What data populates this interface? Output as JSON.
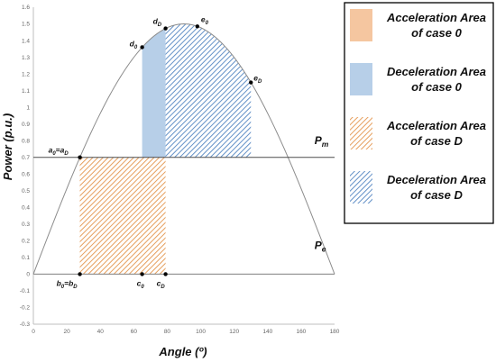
{
  "chart_data": {
    "type": "line",
    "title": "",
    "xlabel": "Angle (º)",
    "ylabel": "Power (p.u.)",
    "xlim": [
      0,
      180
    ],
    "ylim": [
      -0.3,
      1.6
    ],
    "xticks": [
      "0",
      "20",
      "40",
      "60",
      "80",
      "100",
      "120",
      "140",
      "160",
      "180"
    ],
    "yticks": [
      "-0.3",
      "-0.2",
      "-0.1",
      "0",
      "0.1",
      "0.2",
      "0.3",
      "0.4",
      "0.5",
      "0.6",
      "0.7",
      "0.8",
      "0.9",
      "1",
      "1.1",
      "1.2",
      "1.3",
      "1.4",
      "1.5",
      "1.6"
    ],
    "grid": false,
    "series": [
      {
        "name": "Pe",
        "curve": "sine",
        "amplitude": 1.5,
        "x_range": [
          0,
          180
        ]
      },
      {
        "name": "Pm",
        "constant": 0.7,
        "x_range": [
          0,
          180
        ]
      }
    ],
    "curve_labels": [
      {
        "main": "P",
        "sub": "m",
        "x": 168,
        "y": 0.78
      },
      {
        "main": "P",
        "sub": "e",
        "x": 168,
        "y": 0.15
      }
    ],
    "points": [
      {
        "main": "a",
        "sub": "0",
        "rest": "=a",
        "sub2": "D",
        "x": 27.8,
        "y": 0.7
      },
      {
        "main": "b",
        "sub": "0",
        "rest": "=b",
        "sub2": "D",
        "x": 27.8,
        "y": 0
      },
      {
        "main": "c",
        "sub": "0",
        "x": 65,
        "y": 0
      },
      {
        "main": "c",
        "sub": "D",
        "x": 79,
        "y": 0
      },
      {
        "main": "d",
        "sub": "0",
        "x": 65,
        "y": 1.36
      },
      {
        "main": "d",
        "sub": "D",
        "x": 79,
        "y": 1.473
      },
      {
        "main": "e",
        "sub": "0",
        "x": 98,
        "y": 1.485
      },
      {
        "main": "e",
        "sub": "D",
        "x": 130,
        "y": 1.149
      }
    ],
    "areas": [
      {
        "label": "Acceleration Area of case 0",
        "x": [
          27.8,
          65
        ],
        "y_from": 0,
        "y_to": 0.7,
        "style": "solid",
        "color": "#f5c6a0"
      },
      {
        "label": "Deceleration Area of case 0",
        "x": [
          65,
          98
        ],
        "from": "Pm",
        "to": "Pe",
        "style": "solid",
        "color": "#b7cfe8"
      },
      {
        "label": "Acceleration Area of case D",
        "x": [
          27.8,
          79
        ],
        "y_from": 0,
        "y_to": 0.7,
        "style": "hatched",
        "color": "#e59a55"
      },
      {
        "label": "Deceleration Area of case D",
        "x": [
          79,
          130
        ],
        "from": "Pm",
        "to": "Pe",
        "style": "hatched",
        "color": "#5b8bc4"
      }
    ]
  },
  "legend": {
    "placement": "right",
    "items": [
      {
        "line1": "Acceleration Area",
        "line2": "of case 0",
        "style": "solid",
        "color": "#f5c6a0"
      },
      {
        "line1": "Deceleration Area",
        "line2": "of case 0",
        "style": "solid",
        "color": "#b7cfe8"
      },
      {
        "line1": "Acceleration Area",
        "line2": "of case D",
        "style": "hatched",
        "color": "#e59a55"
      },
      {
        "line1": "Deceleration Area",
        "line2": "of case D",
        "style": "hatched",
        "color": "#5b8bc4"
      }
    ]
  }
}
